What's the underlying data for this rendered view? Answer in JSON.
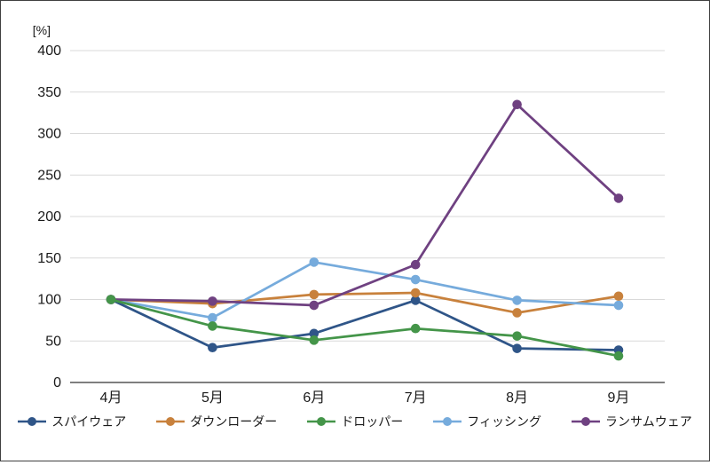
{
  "chart_data": {
    "type": "line",
    "title": "",
    "xlabel": "",
    "ylabel": "[%]",
    "ylim": [
      0,
      400
    ],
    "ytick_step": 50,
    "yticks": [
      0,
      50,
      100,
      150,
      200,
      250,
      300,
      350,
      400
    ],
    "grid": true,
    "legend_position": "bottom",
    "categories": [
      "4月",
      "5月",
      "6月",
      "7月",
      "8月",
      "9月"
    ],
    "series": [
      {
        "id": "spyware",
        "name": "スパイウェア",
        "color": "#2f5588",
        "values": [
          100,
          42,
          59,
          99,
          41,
          39
        ]
      },
      {
        "id": "downloader",
        "name": "ダウンローダー",
        "color": "#c8813c",
        "values": [
          100,
          95,
          106,
          108,
          84,
          104
        ]
      },
      {
        "id": "dropper",
        "name": "ドロッパー",
        "color": "#449549",
        "values": [
          100,
          68,
          51,
          65,
          56,
          32
        ]
      },
      {
        "id": "phishing",
        "name": "フィッシング",
        "color": "#76abdc",
        "values": [
          100,
          78,
          145,
          124,
          99,
          93
        ]
      },
      {
        "id": "ransomware",
        "name": "ランサムウェア",
        "color": "#6f4181",
        "values": [
          100,
          98,
          93,
          142,
          335,
          222
        ]
      }
    ],
    "z_order": [
      0,
      1,
      3,
      4,
      2
    ],
    "colors": {
      "gridline": "#d9d9d9",
      "baseline": "#7f7f7f",
      "text": "#1a1a1a"
    }
  }
}
